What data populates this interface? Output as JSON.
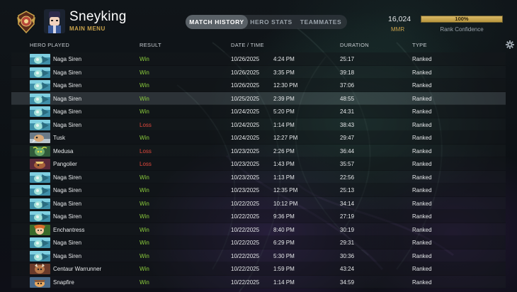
{
  "profile": {
    "username": "Sneyking",
    "subtitle": "MAIN MENU"
  },
  "tabs": [
    {
      "label": "MATCH HISTORY",
      "active": true
    },
    {
      "label": "HERO STATS",
      "active": false
    },
    {
      "label": "TEAMMATES",
      "active": false
    }
  ],
  "mmr": {
    "value": "16,024",
    "label": "MMR"
  },
  "rank_confidence": {
    "percent_text": "100%",
    "fraction": 1.0,
    "label": "Rank Confidence"
  },
  "table": {
    "headers": {
      "hero": "HERO PLAYED",
      "result": "RESULT",
      "datetime": "DATE / TIME",
      "duration": "DURATION",
      "type": "TYPE"
    },
    "rows": [
      {
        "hero": "Naga Siren",
        "result": "Win",
        "date": "10/26/2025",
        "time": "4:24 PM",
        "duration": "25:17",
        "type": "Ranked",
        "icon": "naga"
      },
      {
        "hero": "Naga Siren",
        "result": "Win",
        "date": "10/26/2025",
        "time": "3:35 PM",
        "duration": "39:18",
        "type": "Ranked",
        "icon": "naga"
      },
      {
        "hero": "Naga Siren",
        "result": "Win",
        "date": "10/26/2025",
        "time": "12:30 PM",
        "duration": "37:06",
        "type": "Ranked",
        "icon": "naga"
      },
      {
        "hero": "Naga Siren",
        "result": "Win",
        "date": "10/25/2025",
        "time": "2:39 PM",
        "duration": "48:55",
        "type": "Ranked",
        "icon": "naga",
        "selected": true
      },
      {
        "hero": "Naga Siren",
        "result": "Win",
        "date": "10/24/2025",
        "time": "5:20 PM",
        "duration": "24:31",
        "type": "Ranked",
        "icon": "naga"
      },
      {
        "hero": "Naga Siren",
        "result": "Loss",
        "date": "10/24/2025",
        "time": "1:14 PM",
        "duration": "38:43",
        "type": "Ranked",
        "icon": "naga"
      },
      {
        "hero": "Tusk",
        "result": "Win",
        "date": "10/24/2025",
        "time": "12:27 PM",
        "duration": "29:47",
        "type": "Ranked",
        "icon": "tusk"
      },
      {
        "hero": "Medusa",
        "result": "Loss",
        "date": "10/23/2025",
        "time": "2:26 PM",
        "duration": "36:44",
        "type": "Ranked",
        "icon": "medusa"
      },
      {
        "hero": "Pangolier",
        "result": "Loss",
        "date": "10/23/2025",
        "time": "1:43 PM",
        "duration": "35:57",
        "type": "Ranked",
        "icon": "pangolier"
      },
      {
        "hero": "Naga Siren",
        "result": "Win",
        "date": "10/23/2025",
        "time": "1:13 PM",
        "duration": "22:56",
        "type": "Ranked",
        "icon": "naga"
      },
      {
        "hero": "Naga Siren",
        "result": "Win",
        "date": "10/23/2025",
        "time": "12:35 PM",
        "duration": "25:13",
        "type": "Ranked",
        "icon": "naga"
      },
      {
        "hero": "Naga Siren",
        "result": "Win",
        "date": "10/22/2025",
        "time": "10:12 PM",
        "duration": "34:14",
        "type": "Ranked",
        "icon": "naga"
      },
      {
        "hero": "Naga Siren",
        "result": "Win",
        "date": "10/22/2025",
        "time": "9:36 PM",
        "duration": "27:19",
        "type": "Ranked",
        "icon": "naga"
      },
      {
        "hero": "Enchantress",
        "result": "Win",
        "date": "10/22/2025",
        "time": "8:40 PM",
        "duration": "30:19",
        "type": "Ranked",
        "icon": "enchantress"
      },
      {
        "hero": "Naga Siren",
        "result": "Win",
        "date": "10/22/2025",
        "time": "6:29 PM",
        "duration": "29:31",
        "type": "Ranked",
        "icon": "naga"
      },
      {
        "hero": "Naga Siren",
        "result": "Win",
        "date": "10/22/2025",
        "time": "5:30 PM",
        "duration": "30:36",
        "type": "Ranked",
        "icon": "naga"
      },
      {
        "hero": "Centaur Warrunner",
        "result": "Win",
        "date": "10/22/2025",
        "time": "1:59 PM",
        "duration": "43:24",
        "type": "Ranked",
        "icon": "centaur"
      },
      {
        "hero": "Snapfire",
        "result": "Win",
        "date": "10/22/2025",
        "time": "1:14 PM",
        "duration": "34:59",
        "type": "Ranked",
        "icon": "snapfire"
      }
    ]
  },
  "colors": {
    "win": "#8ccf3c",
    "loss": "#e0483c",
    "gold": "#c9a24a"
  },
  "icons": {
    "settings": "gear-icon",
    "rank": "rank-emblem-icon",
    "avatar": "player-avatar"
  }
}
